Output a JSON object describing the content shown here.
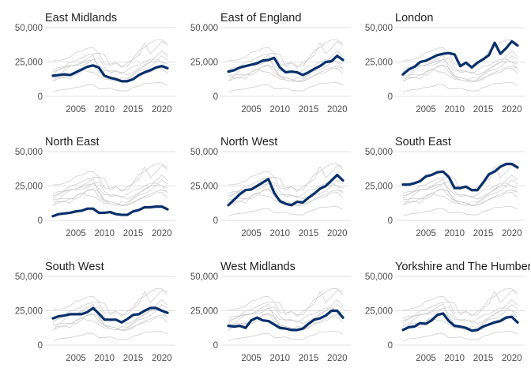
{
  "chart_data": {
    "type": "line",
    "layout": "small-multiples",
    "x": [
      2001,
      2002,
      2003,
      2004,
      2005,
      2006,
      2007,
      2008,
      2009,
      2010,
      2011,
      2012,
      2013,
      2014,
      2015,
      2016,
      2017,
      2018,
      2019,
      2020,
      2021
    ],
    "xticks": [
      2005,
      2010,
      2015,
      2020
    ],
    "xtick_labels": [
      "2005",
      "2010",
      "2015",
      "2020"
    ],
    "ylim": [
      0,
      50000
    ],
    "yticks": [
      0,
      25000,
      50000
    ],
    "ytick_labels": [
      "0",
      "25,000",
      "50,000"
    ],
    "highlight_color": "#08306b",
    "background_color": "#cfcfcf",
    "grid": true,
    "series": [
      {
        "name": "East Midlands",
        "values": [
          15000,
          15500,
          16000,
          15500,
          17500,
          19500,
          21500,
          22500,
          21000,
          15000,
          13500,
          12500,
          11000,
          11000,
          12500,
          15500,
          17500,
          19000,
          21000,
          22000,
          20500
        ]
      },
      {
        "name": "East of England",
        "values": [
          18000,
          19000,
          21000,
          22000,
          23000,
          24000,
          26000,
          26500,
          28000,
          21000,
          17500,
          18000,
          17500,
          15500,
          17500,
          20000,
          22000,
          25000,
          25500,
          29500,
          26500
        ]
      },
      {
        "name": "London",
        "values": [
          16000,
          19500,
          21500,
          25000,
          26000,
          28000,
          30000,
          31000,
          31500,
          30500,
          22000,
          24500,
          21000,
          24500,
          27000,
          30000,
          39000,
          31000,
          35000,
          40000,
          37000
        ]
      },
      {
        "name": "North East",
        "values": [
          3000,
          4500,
          5000,
          5500,
          6500,
          7000,
          8500,
          8500,
          5500,
          5500,
          6000,
          4500,
          4000,
          4000,
          6500,
          7500,
          9500,
          9500,
          10000,
          10000,
          8000
        ]
      },
      {
        "name": "North West",
        "values": [
          11000,
          15000,
          19000,
          22000,
          22500,
          25000,
          27500,
          30000,
          20000,
          14000,
          12000,
          11000,
          13500,
          13000,
          16500,
          19500,
          23000,
          25000,
          29000,
          33000,
          29000
        ]
      },
      {
        "name": "South East",
        "values": [
          26000,
          26000,
          27000,
          28500,
          32000,
          33000,
          35000,
          35500,
          31500,
          23500,
          23500,
          24500,
          22000,
          22000,
          27500,
          33500,
          35500,
          39000,
          41000,
          41000,
          38500
        ]
      },
      {
        "name": "South West",
        "values": [
          19500,
          21000,
          21500,
          22500,
          22500,
          22500,
          24000,
          27000,
          23000,
          18500,
          18500,
          18500,
          16500,
          19000,
          22000,
          22500,
          25000,
          27000,
          27000,
          25000,
          23500
        ]
      },
      {
        "name": "West Midlands",
        "values": [
          14000,
          13500,
          14000,
          12500,
          18000,
          20000,
          18000,
          17500,
          15000,
          12500,
          12000,
          11000,
          11000,
          12000,
          15500,
          18500,
          19500,
          21500,
          25000,
          25000,
          20000
        ]
      },
      {
        "name": "Yorkshire and The Humber",
        "values": [
          11000,
          13000,
          13500,
          16000,
          15500,
          18000,
          22000,
          23000,
          17500,
          14000,
          13500,
          12500,
          10500,
          11000,
          13500,
          15000,
          16500,
          17500,
          20000,
          20500,
          16500
        ]
      }
    ]
  }
}
